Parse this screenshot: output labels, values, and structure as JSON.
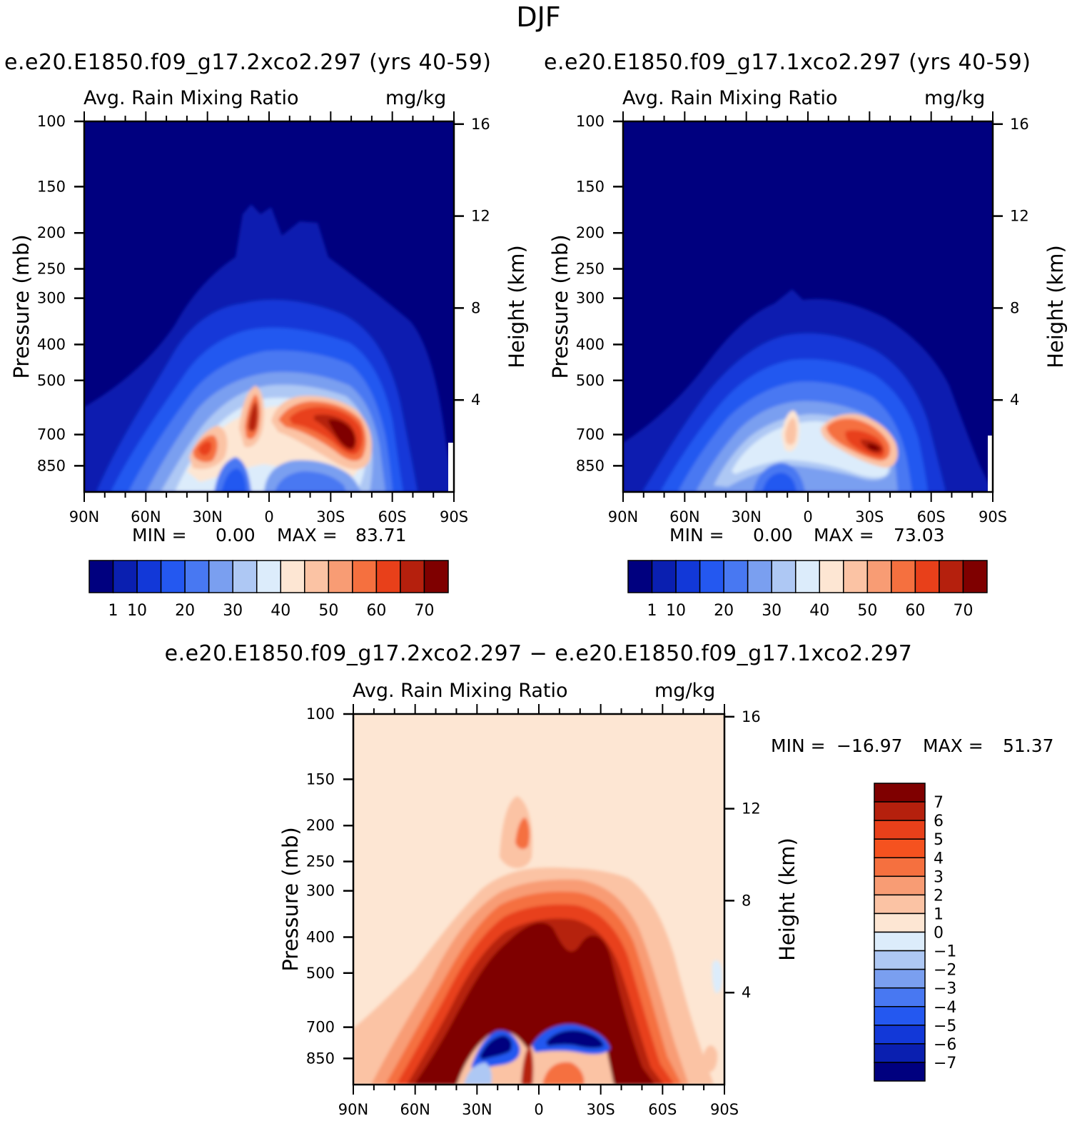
{
  "figure": {
    "title": "DJF",
    "units": "mg/kg",
    "variable_label": "Avg. Rain Mixing Ratio"
  },
  "stats_labels": {
    "min": "MIN =",
    "max": "MAX ="
  },
  "axes": {
    "pressure_label": "Pressure (mb)",
    "height_label": "Height (km)",
    "pressure_ticks": [
      "100",
      "150",
      "200",
      "250",
      "300",
      "400",
      "500",
      "700",
      "850"
    ],
    "height_ticks": [
      "16",
      "12",
      "8",
      "4"
    ],
    "lat_ticks": [
      "90N",
      "60N",
      "30N",
      "0",
      "30S",
      "60S",
      "90S"
    ]
  },
  "panels": {
    "left": {
      "title": "e.e20.E1850.f09_g17.2xco2.297 (yrs 40-59)",
      "min": "0.00",
      "max": "83.71"
    },
    "right": {
      "title": "e.e20.E1850.f09_g17.1xco2.297 (yrs 40-59)",
      "min": "0.00",
      "max": "73.03"
    },
    "diff": {
      "title": "e.e20.E1850.f09_g17.2xco2.297 − e.e20.E1850.f09_g17.1xco2.297",
      "min": "−16.97",
      "max": "51.37"
    }
  },
  "colorbars": {
    "main_labels": [
      "1",
      "10",
      "20",
      "30",
      "40",
      "50",
      "60",
      "70"
    ],
    "main_colors": [
      "#00007f",
      "#0a1fb0",
      "#1238d8",
      "#2458f0",
      "#4878f2",
      "#7a9ff0",
      "#aec8f4",
      "#dcecfb",
      "#fde6d3",
      "#fbc3a4",
      "#f89c74",
      "#f5703f",
      "#e8401a",
      "#b5200d",
      "#7f0000"
    ],
    "diff_labels": [
      "7",
      "6",
      "5",
      "4",
      "3",
      "2",
      "1",
      "0",
      "−1",
      "−2",
      "−3",
      "−4",
      "−5",
      "−6",
      "−7"
    ],
    "diff_colors": [
      "#7f0000",
      "#b5200d",
      "#e8401a",
      "#f5521f",
      "#f5703f",
      "#f89c74",
      "#fbc3a4",
      "#fde6d3",
      "#dcecfb",
      "#aec8f4",
      "#7a9ff0",
      "#4878f2",
      "#2458f0",
      "#1238d8",
      "#0a1fb0",
      "#00007f"
    ]
  },
  "chart_data": [
    {
      "type": "heatmap",
      "title": "e.e20.E1850.f09_g17.2xco2.297 (yrs 40-59)",
      "subtitle": "Avg. Rain Mixing Ratio",
      "units": "mg/kg",
      "xlabel": "",
      "ylabel": "Pressure (mb)",
      "y2label": "Height (km)",
      "x_ticks": [
        "90N",
        "60N",
        "30N",
        "0",
        "30S",
        "60S",
        "90S"
      ],
      "xlim": [
        90,
        -90
      ],
      "ylim": [
        100,
        1000
      ],
      "y_scale": "log",
      "y_ticks": [
        100,
        150,
        200,
        250,
        300,
        400,
        500,
        700,
        850
      ],
      "y2_ticks": [
        16,
        12,
        8,
        4
      ],
      "levels": [
        1,
        5,
        10,
        15,
        20,
        25,
        30,
        35,
        40,
        45,
        50,
        55,
        60,
        65,
        70
      ],
      "min": 0.0,
      "max": 83.71,
      "features": [
        {
          "desc": "primary maximum",
          "lat": -35,
          "p": 680,
          "value": 83.71
        },
        {
          "desc": "secondary maximum",
          "lat": 30,
          "p": 700,
          "value": 60
        },
        {
          "desc": "equatorial maximum",
          "lat": 5,
          "p": 600,
          "value": 65
        },
        {
          "desc": "1 mg/kg cloud top",
          "lat": 0,
          "p": 170,
          "value": 1
        }
      ]
    },
    {
      "type": "heatmap",
      "title": "e.e20.E1850.f09_g17.1xco2.297 (yrs 40-59)",
      "subtitle": "Avg. Rain Mixing Ratio",
      "units": "mg/kg",
      "xlabel": "",
      "ylabel": "Pressure (mb)",
      "y2label": "Height (km)",
      "x_ticks": [
        "90N",
        "60N",
        "30N",
        "0",
        "30S",
        "60S",
        "90S"
      ],
      "xlim": [
        90,
        -90
      ],
      "ylim": [
        100,
        1000
      ],
      "y_scale": "log",
      "y_ticks": [
        100,
        150,
        200,
        250,
        300,
        400,
        500,
        700,
        850
      ],
      "y2_ticks": [
        16,
        12,
        8,
        4
      ],
      "levels": [
        1,
        5,
        10,
        15,
        20,
        25,
        30,
        35,
        40,
        45,
        50,
        55,
        60,
        65,
        70
      ],
      "min": 0.0,
      "max": 73.03,
      "features": [
        {
          "desc": "primary maximum",
          "lat": -32,
          "p": 700,
          "value": 73.03
        },
        {
          "desc": "equatorial maximum",
          "lat": 8,
          "p": 620,
          "value": 42
        },
        {
          "desc": "1 mg/kg cloud top",
          "lat": -5,
          "p": 290,
          "value": 1
        }
      ]
    },
    {
      "type": "heatmap",
      "title": "e.e20.E1850.f09_g17.2xco2.297 − e.e20.E1850.f09_g17.1xco2.297",
      "subtitle": "Avg. Rain Mixing Ratio",
      "units": "mg/kg",
      "xlabel": "",
      "ylabel": "Pressure (mb)",
      "y2label": "Height (km)",
      "x_ticks": [
        "90N",
        "60N",
        "30N",
        "0",
        "30S",
        "60S",
        "90S"
      ],
      "xlim": [
        90,
        -90
      ],
      "ylim": [
        100,
        1000
      ],
      "y_scale": "log",
      "y_ticks": [
        100,
        150,
        200,
        250,
        300,
        400,
        500,
        700,
        850
      ],
      "y2_ticks": [
        16,
        12,
        8,
        4
      ],
      "levels": [
        -7,
        -6,
        -5,
        -4,
        -3,
        -2,
        -1,
        0,
        1,
        2,
        3,
        4,
        5,
        6,
        7
      ],
      "min": -16.97,
      "max": 51.37,
      "features": [
        {
          "desc": "large positive region",
          "lat": 0,
          "p": 500,
          "value": 7
        },
        {
          "desc": "negative core",
          "lat": -10,
          "p": 700,
          "value": -7
        },
        {
          "desc": "negative core",
          "lat": 20,
          "p": 700,
          "value": -7
        },
        {
          "desc": "upper positive blob",
          "lat": 5,
          "p": 200,
          "value": 3
        }
      ]
    }
  ]
}
